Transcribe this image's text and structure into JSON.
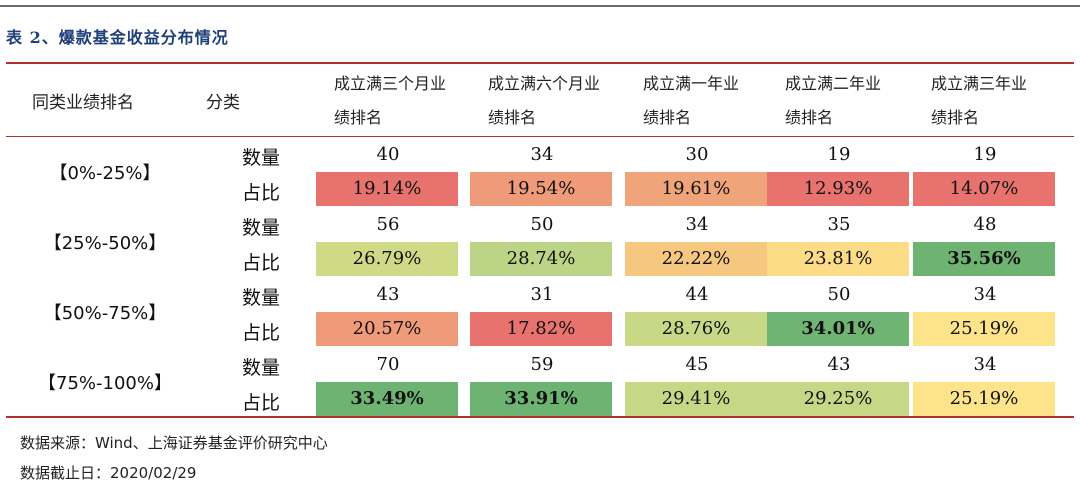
{
  "caption": "表 2、爆款基金收益分布情况",
  "headers": {
    "rank": "同类业绩排名",
    "type": "分类",
    "periods": [
      {
        "line1": "成立满三个月业",
        "line2": "绩排名"
      },
      {
        "line1": "成立满六个月业",
        "line2": "绩排名"
      },
      {
        "line1": "成立满一年业",
        "line2": "绩排名"
      },
      {
        "line1": "成立满二年业",
        "line2": "绩排名"
      },
      {
        "line1": "成立满三年业",
        "line2": "绩排名"
      }
    ]
  },
  "rows": [
    {
      "rank": "【0%-25%】",
      "count_label": "数量",
      "ratio_label": "占比",
      "counts": [
        "40",
        "34",
        "30",
        "19",
        "19"
      ],
      "ratios": [
        {
          "value": "19.14%",
          "color": "#e8736e",
          "bold": false
        },
        {
          "value": "19.54%",
          "color": "#ef9a79",
          "bold": false
        },
        {
          "value": "19.61%",
          "color": "#f0a479",
          "bold": false
        },
        {
          "value": "12.93%",
          "color": "#e8736e",
          "bold": false
        },
        {
          "value": "14.07%",
          "color": "#e8736e",
          "bold": false
        }
      ]
    },
    {
      "rank": "【25%-50%】",
      "count_label": "数量",
      "ratio_label": "占比",
      "counts": [
        "56",
        "50",
        "34",
        "35",
        "48"
      ],
      "ratios": [
        {
          "value": "26.79%",
          "color": "#cfda87",
          "bold": false
        },
        {
          "value": "28.74%",
          "color": "#bbd485",
          "bold": false
        },
        {
          "value": "22.22%",
          "color": "#f6c77f",
          "bold": false
        },
        {
          "value": "23.81%",
          "color": "#fddc87",
          "bold": false
        },
        {
          "value": "35.56%",
          "color": "#6fb373",
          "bold": true
        }
      ]
    },
    {
      "rank": "【50%-75%】",
      "count_label": "数量",
      "ratio_label": "占比",
      "counts": [
        "43",
        "31",
        "44",
        "50",
        "34"
      ],
      "ratios": [
        {
          "value": "20.57%",
          "color": "#ef9a79",
          "bold": false
        },
        {
          "value": "17.82%",
          "color": "#e8736e",
          "bold": false
        },
        {
          "value": "28.76%",
          "color": "#c8d886",
          "bold": false
        },
        {
          "value": "34.01%",
          "color": "#70b474",
          "bold": true
        },
        {
          "value": "25.19%",
          "color": "#fde389",
          "bold": false
        }
      ]
    },
    {
      "rank": "【75%-100%】",
      "count_label": "数量",
      "ratio_label": "占比",
      "counts": [
        "70",
        "59",
        "45",
        "43",
        "34"
      ],
      "ratios": [
        {
          "value": "33.49%",
          "color": "#6db372",
          "bold": true
        },
        {
          "value": "33.91%",
          "color": "#6db372",
          "bold": true
        },
        {
          "value": "29.41%",
          "color": "#c6d786",
          "bold": false
        },
        {
          "value": "29.25%",
          "color": "#c6d786",
          "bold": false
        },
        {
          "value": "25.19%",
          "color": "#fde389",
          "bold": false
        }
      ]
    }
  ],
  "notes": {
    "source": "数据来源：Wind、上海证券基金评价研究中心",
    "date": "数据截止日：2020/02/29"
  }
}
